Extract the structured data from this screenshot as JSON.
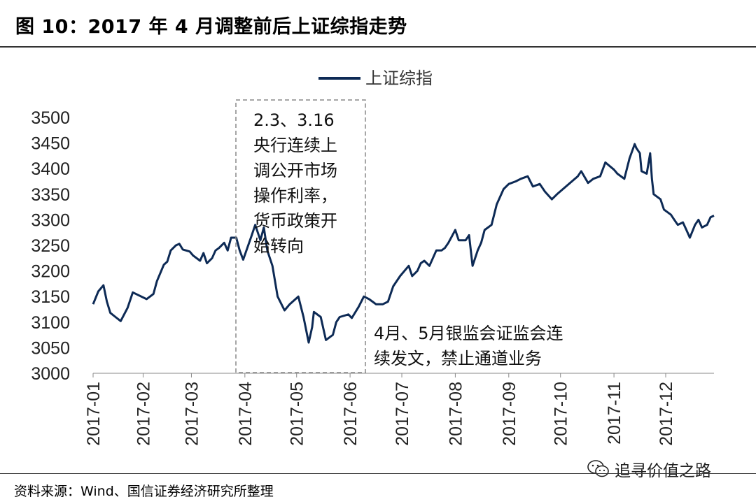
{
  "header": {
    "title": "图 10：2017 年 4 月调整前后上证综指走势"
  },
  "footer": {
    "source": "资料来源：Wind、国信证券经济研究所整理"
  },
  "watermark": {
    "text": "追寻价值之路",
    "icon": "wechat-icon"
  },
  "colors": {
    "series": "#0d2a55",
    "box": "#888888"
  },
  "annotations": [
    {
      "lines": [
        "2.3、3.16",
        "央行连续上",
        "调公开市场",
        "操作利率，",
        "货币政策开",
        "始转向"
      ]
    },
    {
      "lines": [
        "4月、5月银监会证监会连",
        "续发文，禁止通道业务"
      ]
    }
  ],
  "chart_data": {
    "type": "line",
    "title": "",
    "xlabel": "",
    "ylabel": "",
    "ylim": [
      3000,
      3500
    ],
    "yticks": [
      3000,
      3050,
      3100,
      3150,
      3200,
      3250,
      3300,
      3350,
      3400,
      3450,
      3500
    ],
    "xlim": [
      "2017-01-03",
      "2017-12-29"
    ],
    "xticks": [
      "2017-01",
      "2017-02",
      "2017-03",
      "2017-04",
      "2017-05",
      "2017-06",
      "2017-07",
      "2017-08",
      "2017-09",
      "2017-10",
      "2017-11",
      "2017-12"
    ],
    "grid": false,
    "legend": "top-center",
    "series": [
      {
        "name": "上证综指",
        "x": [
          "2017-01-03",
          "2017-01-06",
          "2017-01-09",
          "2017-01-11",
          "2017-01-13",
          "2017-01-16",
          "2017-01-19",
          "2017-01-23",
          "2017-01-26",
          "2017-02-03",
          "2017-02-07",
          "2017-02-09",
          "2017-02-13",
          "2017-02-15",
          "2017-02-17",
          "2017-02-20",
          "2017-02-22",
          "2017-02-24",
          "2017-02-28",
          "2017-03-02",
          "2017-03-06",
          "2017-03-08",
          "2017-03-10",
          "2017-03-13",
          "2017-03-15",
          "2017-03-17",
          "2017-03-20",
          "2017-03-22",
          "2017-03-24",
          "2017-03-27",
          "2017-03-29",
          "2017-03-31",
          "2017-04-05",
          "2017-04-07",
          "2017-04-10",
          "2017-04-12",
          "2017-04-14",
          "2017-04-17",
          "2017-04-20",
          "2017-04-24",
          "2017-04-27",
          "2017-05-02",
          "2017-05-05",
          "2017-05-08",
          "2017-05-10",
          "2017-05-11",
          "2017-05-15",
          "2017-05-18",
          "2017-05-22",
          "2017-05-24",
          "2017-05-26",
          "2017-05-31",
          "2017-06-02",
          "2017-06-06",
          "2017-06-09",
          "2017-06-12",
          "2017-06-14",
          "2017-06-16",
          "2017-06-20",
          "2017-06-23",
          "2017-06-26",
          "2017-06-30",
          "2017-07-05",
          "2017-07-07",
          "2017-07-10",
          "2017-07-12",
          "2017-07-14",
          "2017-07-17",
          "2017-07-19",
          "2017-07-21",
          "2017-07-24",
          "2017-07-26",
          "2017-07-28",
          "2017-08-01",
          "2017-08-03",
          "2017-08-07",
          "2017-08-09",
          "2017-08-11",
          "2017-08-14",
          "2017-08-16",
          "2017-08-18",
          "2017-08-22",
          "2017-08-25",
          "2017-08-29",
          "2017-09-01",
          "2017-09-05",
          "2017-09-08",
          "2017-09-12",
          "2017-09-15",
          "2017-09-19",
          "2017-09-22",
          "2017-09-26",
          "2017-09-29",
          "2017-10-11",
          "2017-10-13",
          "2017-10-17",
          "2017-10-20",
          "2017-10-24",
          "2017-10-27",
          "2017-11-01",
          "2017-11-03",
          "2017-11-07",
          "2017-11-10",
          "2017-11-13",
          "2017-11-14",
          "2017-11-16",
          "2017-11-17",
          "2017-11-20",
          "2017-11-22",
          "2017-11-23",
          "2017-11-24",
          "2017-11-28",
          "2017-11-30",
          "2017-12-04",
          "2017-12-06",
          "2017-12-08",
          "2017-12-11",
          "2017-12-13",
          "2017-12-15",
          "2017-12-18",
          "2017-12-20",
          "2017-12-22",
          "2017-12-25",
          "2017-12-27",
          "2017-12-29"
        ],
        "values": [
          3135,
          3160,
          3172,
          3140,
          3118,
          3110,
          3102,
          3128,
          3158,
          3145,
          3155,
          3180,
          3212,
          3218,
          3240,
          3250,
          3253,
          3242,
          3238,
          3230,
          3220,
          3235,
          3215,
          3225,
          3240,
          3245,
          3255,
          3240,
          3265,
          3265,
          3240,
          3222,
          3270,
          3290,
          3260,
          3285,
          3240,
          3210,
          3150,
          3123,
          3135,
          3150,
          3110,
          3060,
          3090,
          3120,
          3110,
          3065,
          3075,
          3100,
          3110,
          3115,
          3108,
          3130,
          3150,
          3145,
          3140,
          3135,
          3135,
          3140,
          3170,
          3190,
          3210,
          3190,
          3200,
          3215,
          3220,
          3210,
          3225,
          3240,
          3240,
          3245,
          3255,
          3280,
          3260,
          3260,
          3270,
          3210,
          3240,
          3255,
          3280,
          3290,
          3330,
          3360,
          3370,
          3375,
          3380,
          3385,
          3365,
          3370,
          3355,
          3340,
          3350,
          3385,
          3395,
          3372,
          3380,
          3385,
          3412,
          3398,
          3390,
          3380,
          3420,
          3448,
          3440,
          3430,
          3395,
          3390,
          3430,
          3380,
          3350,
          3340,
          3320,
          3310,
          3300,
          3290,
          3295,
          3280,
          3265,
          3290,
          3300,
          3285,
          3290,
          3305,
          3308
        ]
      }
    ]
  }
}
